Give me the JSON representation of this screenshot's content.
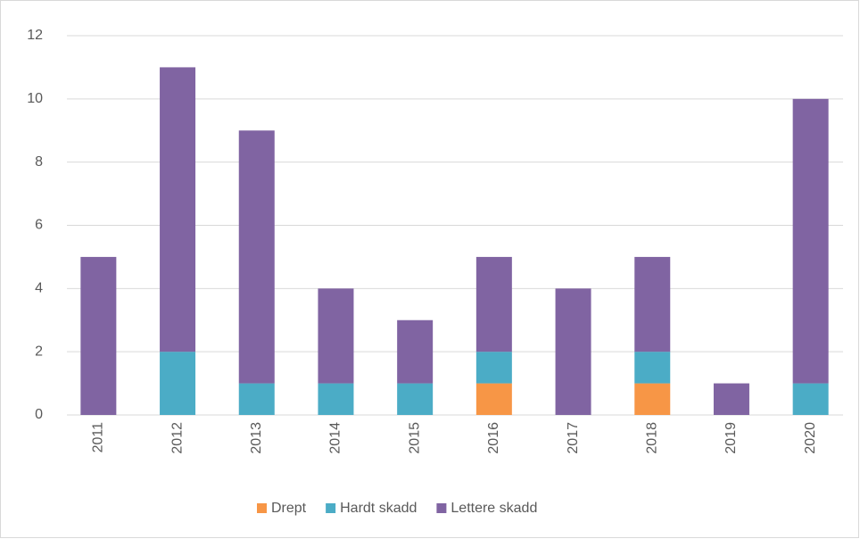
{
  "chart_data": {
    "type": "stacked_bar",
    "categories": [
      "2011",
      "2012",
      "2013",
      "2014",
      "2015",
      "2016",
      "2017",
      "2018",
      "2019",
      "2020"
    ],
    "series": [
      {
        "name": "Drept",
        "color": "#f79646",
        "values": [
          0,
          0,
          0,
          0,
          0,
          1,
          0,
          1,
          0,
          0
        ]
      },
      {
        "name": "Hardt skadd",
        "color": "#4bacc6",
        "values": [
          0,
          2,
          1,
          1,
          1,
          1,
          0,
          1,
          0,
          1
        ]
      },
      {
        "name": "Lettere skadd",
        "color": "#8064a2",
        "values": [
          5,
          9,
          8,
          3,
          2,
          3,
          4,
          3,
          1,
          9
        ]
      }
    ],
    "ylim": [
      0,
      12
    ],
    "yticks": [
      0,
      2,
      4,
      6,
      8,
      10,
      12
    ],
    "grid": true,
    "legend": "bottom"
  }
}
